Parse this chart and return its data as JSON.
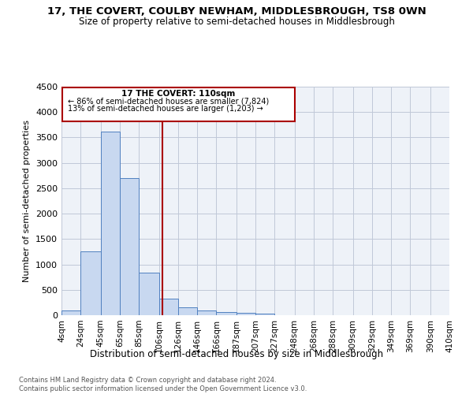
{
  "title": "17, THE COVERT, COULBY NEWHAM, MIDDLESBROUGH, TS8 0WN",
  "subtitle": "Size of property relative to semi-detached houses in Middlesbrough",
  "xlabel": "Distribution of semi-detached houses by size in Middlesbrough",
  "ylabel": "Number of semi-detached properties",
  "footer_line1": "Contains HM Land Registry data © Crown copyright and database right 2024.",
  "footer_line2": "Contains public sector information licensed under the Open Government Licence v3.0.",
  "annotation_title": "17 THE COVERT: 110sqm",
  "annotation_line1": "← 86% of semi-detached houses are smaller (7,824)",
  "annotation_line2": "13% of semi-detached houses are larger (1,203) →",
  "property_size": 110,
  "bar_categories": [
    "4sqm",
    "24sqm",
    "45sqm",
    "65sqm",
    "85sqm",
    "106sqm",
    "126sqm",
    "146sqm",
    "166sqm",
    "187sqm",
    "207sqm",
    "227sqm",
    "248sqm",
    "268sqm",
    "288sqm",
    "309sqm",
    "329sqm",
    "349sqm",
    "369sqm",
    "390sqm",
    "410sqm"
  ],
  "bar_values": [
    90,
    1250,
    3620,
    2700,
    840,
    330,
    160,
    90,
    60,
    40,
    30,
    0,
    0,
    0,
    0,
    0,
    0,
    0,
    0,
    0,
    0
  ],
  "bar_left_edges": [
    4,
    24,
    45,
    65,
    85,
    106,
    126,
    146,
    166,
    187,
    207,
    227,
    248,
    268,
    288,
    309,
    329,
    349,
    369,
    390
  ],
  "bar_widths": [
    20,
    21,
    20,
    20,
    21,
    20,
    20,
    20,
    21,
    20,
    20,
    21,
    20,
    20,
    21,
    20,
    20,
    20,
    21,
    20
  ],
  "bar_color": "#c8d8f0",
  "bar_edge_color": "#5080c0",
  "vline_x": 110,
  "vline_color": "#aa0000",
  "annotation_box_color": "#aa0000",
  "grid_color": "#c0c8d8",
  "background_color": "#eef2f8",
  "ylim": [
    0,
    4500
  ],
  "yticks": [
    0,
    500,
    1000,
    1500,
    2000,
    2500,
    3000,
    3500,
    4000,
    4500
  ]
}
